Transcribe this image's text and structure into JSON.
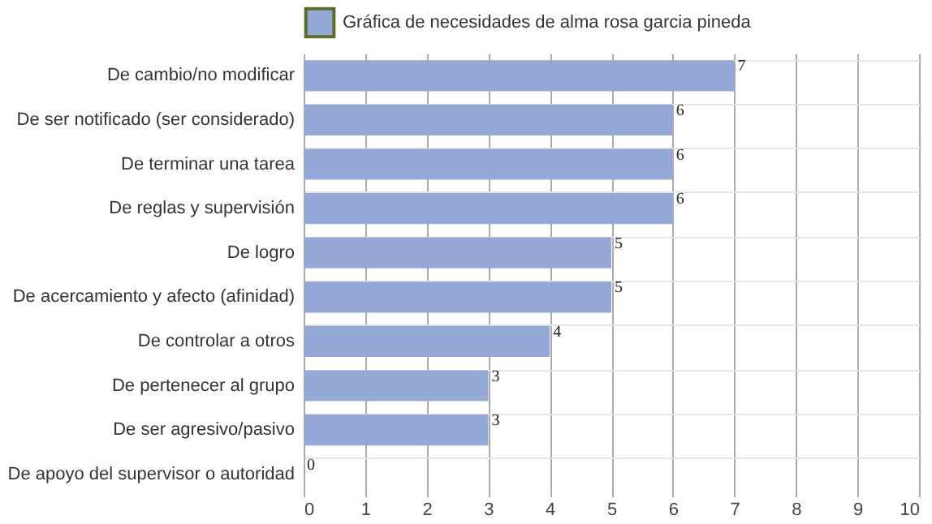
{
  "chart_data": {
    "type": "bar",
    "orientation": "horizontal",
    "categories": [
      "De cambio/no modificar",
      "De ser notificado (ser considerado)",
      "De terminar una tarea",
      "De reglas y supervisión",
      "De logro",
      "De acercamiento y afecto (afinidad)",
      "De controlar a otros",
      "De pertenecer al grupo",
      "De ser agresivo/pasivo",
      "De apoyo del supervisor o autoridad"
    ],
    "series": [
      {
        "name": "Gráfica de necesidades de alma rosa garcia pineda",
        "color": "#95a9d6",
        "values": [
          7,
          6,
          6,
          6,
          5,
          5,
          4,
          3,
          3,
          0
        ]
      }
    ],
    "xlim": [
      0,
      10
    ],
    "xticks": [
      0,
      1,
      2,
      3,
      4,
      5,
      6,
      7,
      8,
      9,
      10
    ],
    "grid": true,
    "legend": "top",
    "data_labels": true
  }
}
